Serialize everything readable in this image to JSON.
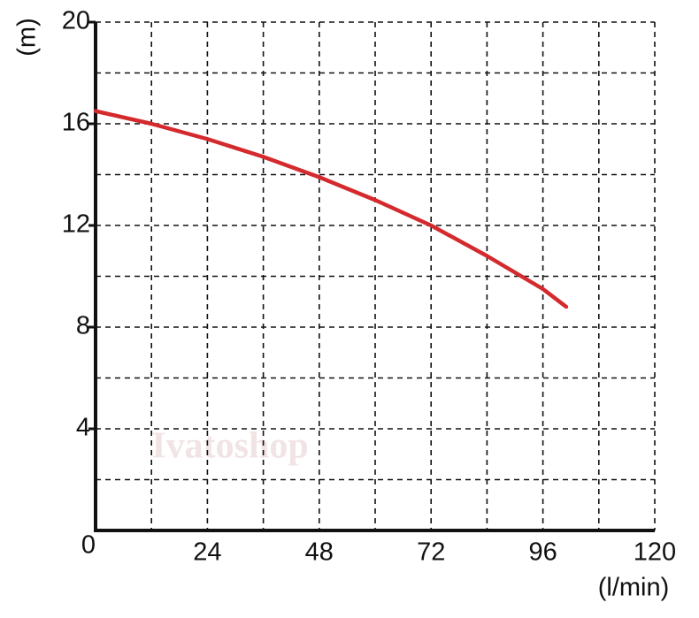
{
  "chart_data": {
    "type": "line",
    "x_label": "(l/min)",
    "y_label": "(m)",
    "watermark": "Ivatoshop",
    "xlim": [
      0,
      120
    ],
    "ylim": [
      0,
      20
    ],
    "xticks": [
      0,
      24,
      48,
      72,
      96,
      120
    ],
    "yticks": [
      4,
      8,
      12,
      16,
      20
    ],
    "xgrid": [
      12,
      24,
      36,
      48,
      60,
      72,
      84,
      96,
      108,
      120
    ],
    "ygrid": [
      2,
      4,
      6,
      8,
      10,
      12,
      14,
      16,
      18,
      20
    ],
    "grid": true,
    "x": [
      0,
      12,
      24,
      36,
      48,
      60,
      72,
      84,
      96,
      101
    ],
    "series": [
      {
        "color": "#d42a2e",
        "values": [
          16.5,
          16.0,
          15.4,
          14.7,
          13.9,
          13.0,
          12.0,
          10.8,
          9.5,
          8.8
        ]
      }
    ]
  }
}
